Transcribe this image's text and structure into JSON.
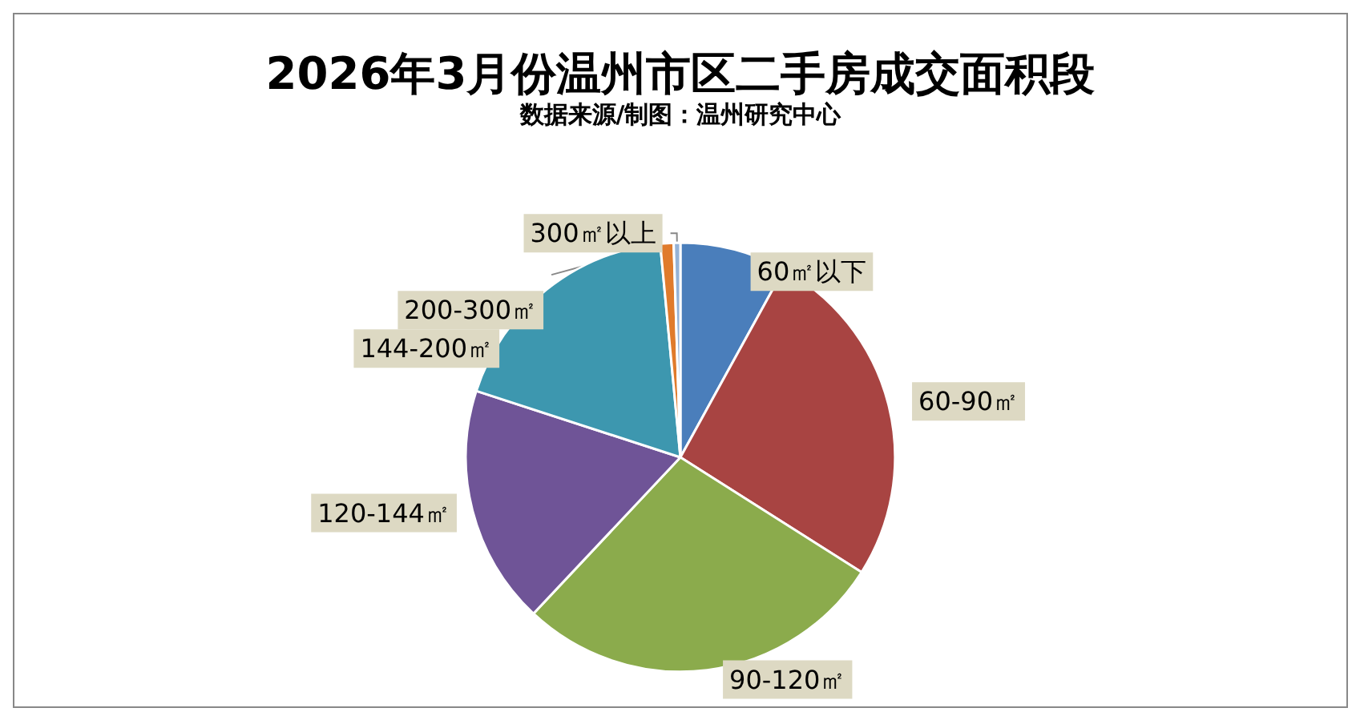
{
  "chart_data": {
    "type": "pie",
    "title": "2026年3月份温州市区二手房成交面积段",
    "subtitle": "数据来源/制图：温州研究中心",
    "categories": [
      "60㎡以下",
      "60-90㎡",
      "90-120㎡",
      "120-144㎡",
      "144-200㎡",
      "200-300㎡",
      "300㎡以上"
    ],
    "values": [
      8,
      26,
      28,
      18,
      18.5,
      1,
      0.5
    ],
    "colors": [
      "#4a7ebb",
      "#a84442",
      "#8bab4c",
      "#6f5497",
      "#3d97af",
      "#e07b2c",
      "#95b3d7"
    ],
    "legend": false
  }
}
